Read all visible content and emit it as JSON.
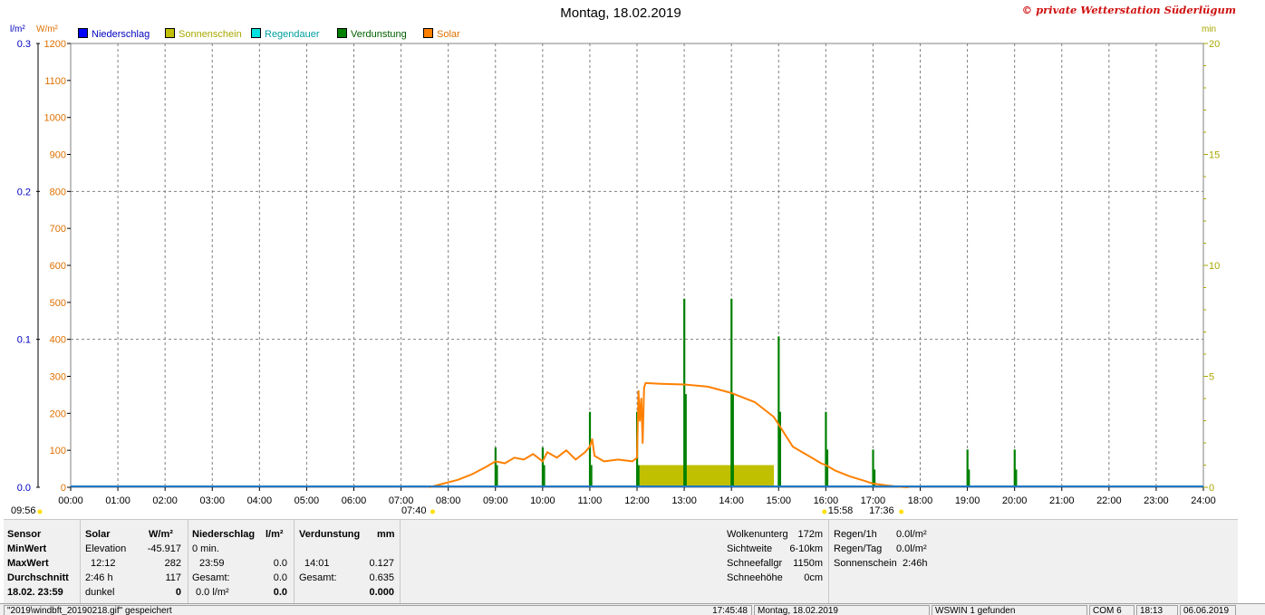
{
  "title": "Montag, 18.02.2019",
  "copyright": "© private Wetterstation Süderlügum",
  "units": {
    "rain": "l/m²",
    "solar": "W/m²",
    "minutes": "min"
  },
  "colors": {
    "rain": "#0000ff",
    "sunshine": "#c0c000",
    "raindur": "#00d0d0",
    "evap": "#008000",
    "solar": "#ff8000",
    "baseline": "#1e78c8"
  },
  "legend": [
    {
      "label": "Niederschlag",
      "color": "#0000ff",
      "text_color": "#0000c0"
    },
    {
      "label": "Sonnenschein",
      "color": "#c0c000",
      "text_color": "#a8a800"
    },
    {
      "label": "Regendauer",
      "color": "#00e0e0",
      "text_color": "#00a0a0"
    },
    {
      "label": "Verdunstung",
      "color": "#008000",
      "text_color": "#006000"
    },
    {
      "label": "Solar",
      "color": "#ff8000",
      "text_color": "#e07000"
    }
  ],
  "chart_data": {
    "type": "line",
    "title": "Montag, 18.02.2019",
    "x_ticks": [
      "00:00",
      "01:00",
      "02:00",
      "03:00",
      "04:00",
      "05:00",
      "06:00",
      "07:00",
      "08:00",
      "09:00",
      "10:00",
      "11:00",
      "12:00",
      "13:00",
      "14:00",
      "15:00",
      "16:00",
      "17:00",
      "18:00",
      "19:00",
      "20:00",
      "21:00",
      "22:00",
      "23:00",
      "24:00"
    ],
    "y_left_rain": {
      "ticks": [
        "0.0",
        "0.1",
        "0.2",
        "0.3"
      ],
      "range": [
        0,
        0.3
      ]
    },
    "y_left_solar": {
      "ticks": [
        "0",
        "100",
        "200",
        "300",
        "400",
        "500",
        "600",
        "700",
        "800",
        "900",
        "1000",
        "1100",
        "1200"
      ],
      "range": [
        0,
        1200
      ]
    },
    "y_right_minutes": {
      "ticks": [
        "0",
        "5",
        "10",
        "15",
        "20"
      ],
      "range": [
        0,
        20
      ]
    },
    "grid": true,
    "series": [
      {
        "name": "Solar",
        "axis": "solar",
        "points": [
          [
            7.6,
            0
          ],
          [
            7.9,
            10
          ],
          [
            8.2,
            20
          ],
          [
            8.5,
            35
          ],
          [
            8.8,
            55
          ],
          [
            9.0,
            70
          ],
          [
            9.2,
            65
          ],
          [
            9.4,
            80
          ],
          [
            9.6,
            75
          ],
          [
            9.8,
            90
          ],
          [
            10.0,
            70
          ],
          [
            10.1,
            95
          ],
          [
            10.3,
            80
          ],
          [
            10.5,
            100
          ],
          [
            10.7,
            75
          ],
          [
            10.9,
            95
          ],
          [
            11.0,
            110
          ],
          [
            11.05,
            130
          ],
          [
            11.1,
            85
          ],
          [
            11.3,
            70
          ],
          [
            11.6,
            75
          ],
          [
            11.9,
            70
          ],
          [
            12.0,
            80
          ],
          [
            12.03,
            260
          ],
          [
            12.06,
            180
          ],
          [
            12.09,
            240
          ],
          [
            12.12,
            120
          ],
          [
            12.15,
            270
          ],
          [
            12.18,
            282
          ],
          [
            12.5,
            280
          ],
          [
            13.0,
            278
          ],
          [
            13.5,
            272
          ],
          [
            14.0,
            255
          ],
          [
            14.5,
            230
          ],
          [
            14.9,
            190
          ],
          [
            15.0,
            170
          ],
          [
            15.1,
            150
          ],
          [
            15.2,
            130
          ],
          [
            15.3,
            110
          ],
          [
            15.5,
            95
          ],
          [
            15.7,
            80
          ],
          [
            15.9,
            65
          ],
          [
            16.0,
            60
          ],
          [
            16.2,
            45
          ],
          [
            16.5,
            30
          ],
          [
            16.8,
            18
          ],
          [
            17.0,
            10
          ],
          [
            17.3,
            5
          ],
          [
            17.6,
            1
          ],
          [
            17.75,
            0
          ]
        ]
      },
      {
        "name": "Verdunstung",
        "axis": "minutes",
        "spikes": [
          [
            9.0,
            1.8
          ],
          [
            9.03,
            1.0
          ],
          [
            10.0,
            1.8
          ],
          [
            10.03,
            1.0
          ],
          [
            11.0,
            3.4
          ],
          [
            11.03,
            1.0
          ],
          [
            12.0,
            3.4
          ],
          [
            12.03,
            1.0
          ],
          [
            13.0,
            8.5
          ],
          [
            13.03,
            4.2
          ],
          [
            14.0,
            8.5
          ],
          [
            14.03,
            4.2
          ],
          [
            15.0,
            6.8
          ],
          [
            15.03,
            3.4
          ],
          [
            16.0,
            3.4
          ],
          [
            16.03,
            1.7
          ],
          [
            17.0,
            1.7
          ],
          [
            17.03,
            0.8
          ],
          [
            19.0,
            1.7
          ],
          [
            19.03,
            0.8
          ],
          [
            20.0,
            1.7
          ],
          [
            20.03,
            0.8
          ]
        ]
      },
      {
        "name": "Sonnenschein",
        "axis": "minutes",
        "blocks": [
          [
            12.05,
            14.9,
            1.0
          ]
        ]
      },
      {
        "name": "Niederschlag",
        "axis": "rain",
        "values": [
          [
            0,
            0
          ],
          [
            24,
            0
          ]
        ]
      }
    ],
    "markers": [
      {
        "label": "09:56",
        "x": 0.0
      },
      {
        "label": "07:40",
        "x": 7.67
      },
      {
        "label": "15:58",
        "x": 15.97
      },
      {
        "label": "17:36",
        "x": 17.6
      }
    ]
  },
  "stats": {
    "headers": {
      "sensor": "Sensor",
      "solar": "Solar",
      "solar_unit": "W/m²",
      "rain": "Niederschlag",
      "rain_unit": "l/m²",
      "evap": "Verdunstung",
      "evap_unit": "mm"
    },
    "rows": {
      "min": {
        "label": "MinWert",
        "solar_a": "Elevation",
        "solar_b": "-45.917",
        "rain_a": "0 min.",
        "rain_b": "",
        "evap_a": "",
        "evap_b": ""
      },
      "max": {
        "label": "MaxWert",
        "solar_a": "12:12",
        "solar_b": "282",
        "rain_a": "23:59",
        "rain_b": "0.0",
        "evap_a": "14:01",
        "evap_b": "0.127"
      },
      "avg": {
        "label": "Durchschnitt",
        "solar_a": "2:46 h",
        "solar_b": "117",
        "rain_a": "Gesamt:",
        "rain_b": "0.0",
        "evap_a": "Gesamt:",
        "evap_b": "0.635"
      },
      "last": {
        "label": "18.02. 23:59",
        "solar_a": "dunkel",
        "solar_b": "0",
        "rain_a": "0.0 l/m²",
        "rain_b": "0.0",
        "evap_a": "",
        "evap_b": "0.000"
      }
    },
    "weather": [
      {
        "label": "Wolkenunterg",
        "value": "172m"
      },
      {
        "label": "Sichtweite",
        "value": "6-10km"
      },
      {
        "label": "Schneefallgr",
        "value": "1150m"
      },
      {
        "label": "Schneehöhe",
        "value": "0cm"
      }
    ],
    "rain_summary": [
      {
        "label": "Regen/1h",
        "value": "0.0l/m²"
      },
      {
        "label": "Regen/Tag",
        "value": "0.0l/m²"
      },
      {
        "label": "Sonnenschein",
        "value": "2:46h"
      }
    ]
  },
  "statusbar": {
    "file": "\"2019\\windbft_20190218.gif\" gespeichert",
    "time": "17:45:48",
    "date": "Montag, 18.02.2019",
    "device": "WSWIN 1 gefunden",
    "com": "COM 6",
    "clock": "18:13",
    "today": "06.06.2019"
  }
}
